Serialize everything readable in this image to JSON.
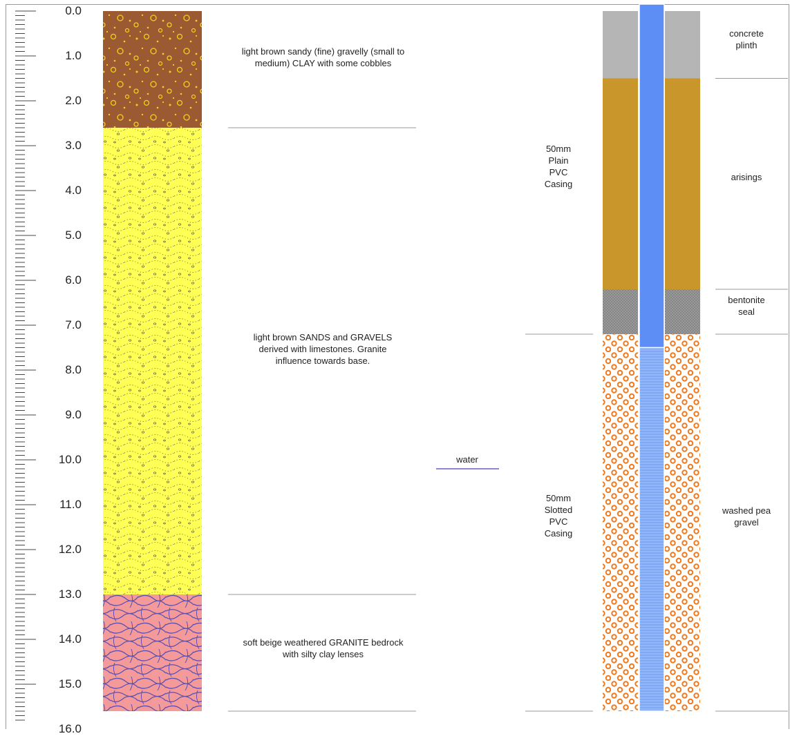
{
  "depth_unit": "",
  "depth_ticks": [
    "0.0",
    "1.0",
    "2.0",
    "3.0",
    "4.0",
    "5.0",
    "6.0",
    "7.0",
    "8.0",
    "9.0",
    "10.0",
    "11.0",
    "12.0",
    "13.0",
    "14.0",
    "15.0",
    "16.0"
  ],
  "strata": [
    {
      "top": 0.0,
      "bottom": 2.6,
      "pattern": "clay-gravel",
      "description": "light brown sandy (fine) gravelly (small to medium) CLAY with some cobbles"
    },
    {
      "top": 2.6,
      "bottom": 13.0,
      "pattern": "sand-gravel",
      "description": "light brown SANDS and GRAVELS derived with limestones.  Granite influence towards base."
    },
    {
      "top": 13.0,
      "bottom": 15.6,
      "pattern": "granite",
      "description": "soft beige weathered GRANITE bedrock with silty clay lenses"
    }
  ],
  "water": {
    "depth": 10.2,
    "label": "water"
  },
  "casing": [
    {
      "top": 0.0,
      "bottom": 7.2,
      "label": "50mm Plain PVC Casing"
    },
    {
      "top": 7.2,
      "bottom": 15.6,
      "label": "50mm Slotted PVC Casing"
    }
  ],
  "annulus": [
    {
      "top": 0.0,
      "bottom": 1.5,
      "fill": "concrete",
      "label": "concrete plinth"
    },
    {
      "top": 1.5,
      "bottom": 6.2,
      "fill": "arisings",
      "label": "arisings"
    },
    {
      "top": 6.2,
      "bottom": 7.2,
      "fill": "bentonite",
      "label": "bentonite seal"
    },
    {
      "top": 7.2,
      "bottom": 15.6,
      "fill": "gravel",
      "label": "washed pea gravel"
    }
  ],
  "pipe_screen_top": 7.5,
  "colors": {
    "clay": "#9b5a32",
    "clay_dots": "#f2d21e",
    "sand": "#ffff55",
    "granite": "#f59a9a",
    "granite_lines": "#5a4fb0",
    "concrete": "#b5b5b5",
    "arisings": "#c8962a",
    "bentonite": "#8c8c8c",
    "gravel_rings": "#f07a20",
    "pipe": "#5c8ef5",
    "pipe_screen": "#7fa8f5"
  }
}
